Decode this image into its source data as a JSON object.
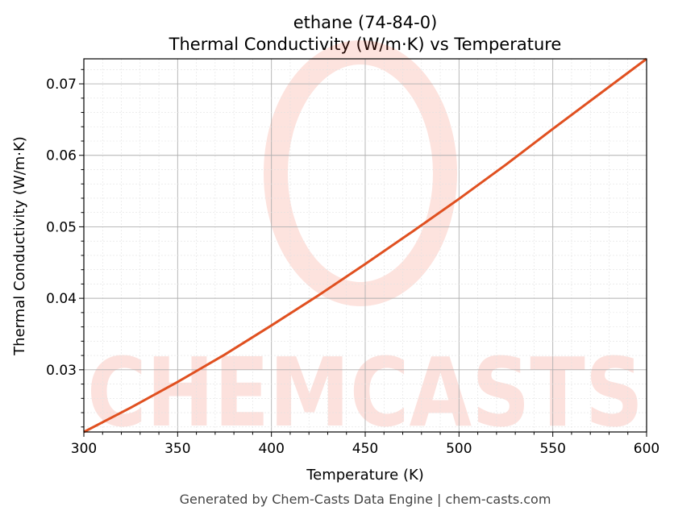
{
  "chart_data": {
    "type": "line",
    "title": "ethane (74-84-0)",
    "subtitle": "Thermal Conductivity (W/m·K) vs Temperature",
    "xlabel": "Temperature (K)",
    "ylabel": "Thermal Conductivity (W/m·K)",
    "xlim": [
      300,
      600
    ],
    "ylim": [
      0.0213,
      0.0735
    ],
    "xticks": [
      "300",
      "350",
      "400",
      "450",
      "500",
      "550",
      "600"
    ],
    "yticks": [
      "0.03",
      "0.04",
      "0.05",
      "0.06",
      "0.07"
    ],
    "grid": true,
    "series": [
      {
        "name": "ethane",
        "color": "#e05020",
        "x": [
          300,
          325,
          350,
          375,
          400,
          425,
          450,
          475,
          500,
          525,
          550,
          575,
          600
        ],
        "y": [
          0.0213,
          0.0247,
          0.0283,
          0.0321,
          0.0362,
          0.0404,
          0.0448,
          0.0493,
          0.0539,
          0.0587,
          0.0637,
          0.0686,
          0.0735
        ]
      }
    ]
  },
  "watermark": "CHEMCASTS",
  "footer": "Generated by Chem-Casts Data Engine | chem-casts.com"
}
